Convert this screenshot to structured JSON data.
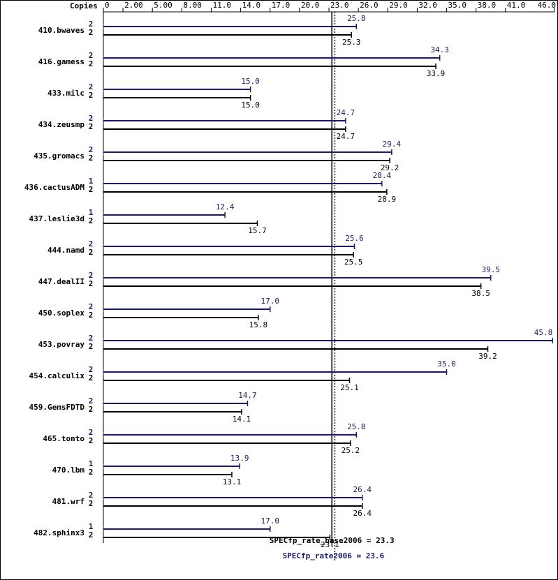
{
  "chart_data": {
    "type": "bar",
    "orientation": "horizontal",
    "copies_label": "Copies",
    "categories": [
      "410.bwaves",
      "416.gamess",
      "433.milc",
      "434.zeusmp",
      "435.gromacs",
      "436.cactusADM",
      "437.leslie3d",
      "444.namd",
      "447.dealII",
      "450.soplex",
      "453.povray",
      "454.calculix",
      "459.GemsFDTD",
      "465.tonto",
      "470.lbm",
      "481.wrf",
      "482.sphinx3"
    ],
    "series": [
      {
        "color": "#191970",
        "copies": [
          2,
          2,
          2,
          2,
          2,
          1,
          1,
          2,
          2,
          2,
          2,
          2,
          2,
          2,
          1,
          2,
          1
        ],
        "values": [
          25.8,
          34.3,
          15.0,
          24.7,
          29.4,
          28.4,
          12.4,
          25.6,
          39.5,
          17.0,
          45.8,
          35.0,
          14.7,
          25.8,
          13.9,
          26.4,
          17.0
        ],
        "value_labels": [
          "25.8",
          "34.3",
          "15.0",
          "24.7",
          "29.4",
          "28.4",
          "12.4",
          "25.6",
          "39.5",
          "17.0",
          "45.8",
          "35.0",
          "14.7",
          "25.8",
          "13.9",
          "26.4",
          "17.0"
        ]
      },
      {
        "color": "#000000",
        "copies": [
          2,
          2,
          2,
          2,
          2,
          2,
          2,
          2,
          2,
          2,
          2,
          2,
          2,
          2,
          2,
          2,
          2
        ],
        "values": [
          25.3,
          33.9,
          15.0,
          24.7,
          29.2,
          28.9,
          15.7,
          25.5,
          38.5,
          15.8,
          39.2,
          25.1,
          14.1,
          25.2,
          13.1,
          26.4,
          23.1
        ],
        "value_labels": [
          "25.3",
          "33.9",
          "15.0",
          "24.7",
          "29.2",
          "28.9",
          "15.7",
          "25.5",
          "38.5",
          "15.8",
          "39.2",
          "25.1",
          "14.1",
          "25.2",
          "13.1",
          "26.4",
          "23.1"
        ]
      }
    ],
    "reference_lines": [
      {
        "label": "SPECfp_rate_base2006 = 23.3",
        "value": 23.3,
        "color": "#000000",
        "style": "solid"
      },
      {
        "label": "SPECfp_rate2006 = 23.6",
        "value": 23.6,
        "color": "#191970",
        "style": "dotted"
      }
    ],
    "xlim": [
      0,
      46.0
    ],
    "xticks": [
      0,
      {
        "value": 2,
        "label": "2.00"
      },
      {
        "value": 5,
        "label": "5.00"
      },
      {
        "value": 8,
        "label": "8.00"
      },
      {
        "value": 11,
        "label": "11.0"
      },
      {
        "value": 14,
        "label": "14.0"
      },
      {
        "value": 17,
        "label": "17.0"
      },
      {
        "value": 20,
        "label": "20.0"
      },
      {
        "value": 23,
        "label": "23.0"
      },
      {
        "value": 26,
        "label": "26.0"
      },
      {
        "value": 29,
        "label": "29.0"
      },
      {
        "value": 32,
        "label": "32.0"
      },
      {
        "value": 35,
        "label": "35.0"
      },
      {
        "value": 38,
        "label": "38.0"
      },
      {
        "value": 41,
        "label": "41.0"
      },
      {
        "value": 46,
        "label": "46.0"
      }
    ]
  }
}
